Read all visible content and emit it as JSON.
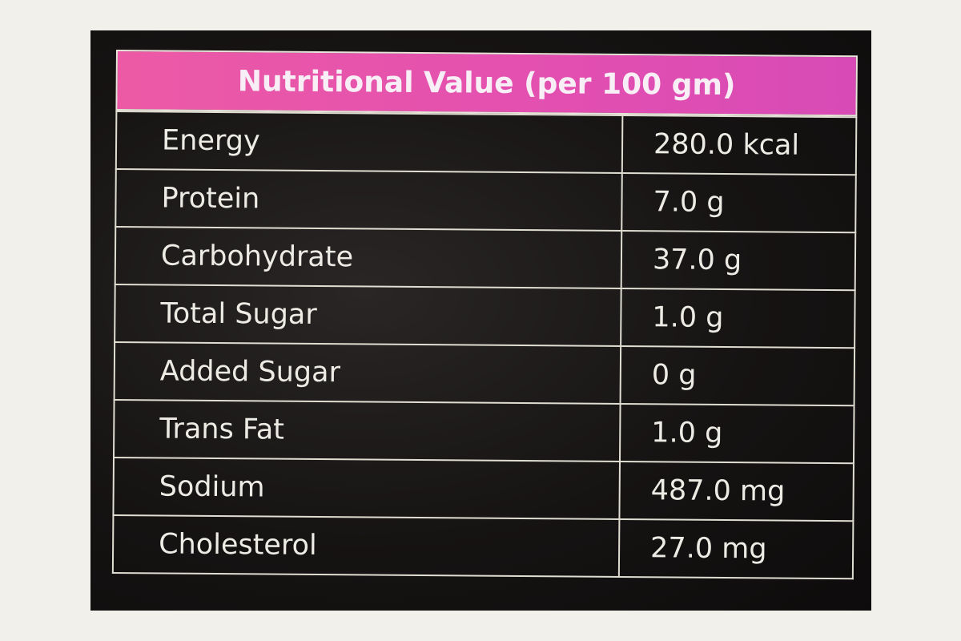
{
  "table": {
    "title": "Nutritional Value (per 100 gm)",
    "rows": [
      [
        "Energy",
        "280.0 kcal"
      ],
      [
        "Protein",
        "7.0 g"
      ],
      [
        "Carbohydrate",
        "37.0 g"
      ],
      [
        "Total Sugar",
        "1.0 g"
      ],
      [
        "Added Sugar",
        "0 g"
      ],
      [
        "Trans Fat",
        "1.0 g"
      ],
      [
        "Sodium",
        "487.0 mg"
      ],
      [
        "Cholesterol",
        "27.0 mg"
      ]
    ]
  }
}
